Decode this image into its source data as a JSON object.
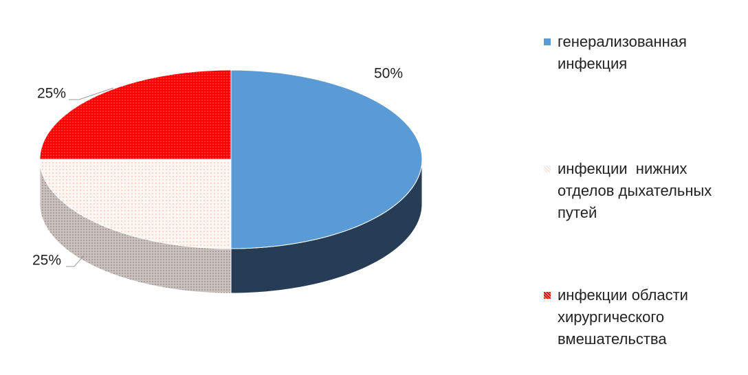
{
  "chart_data": {
    "type": "pie",
    "categories": [
      "генерализованная инфекция",
      "инфекции  нижних отделов дыхательных путей",
      "инфекции области хирургического вмешательства"
    ],
    "values": [
      50,
      25,
      25
    ],
    "value_labels": [
      "50%",
      "25%",
      "25%"
    ],
    "colors": [
      "#5b9bd5",
      "#fbece6",
      "#ff0000"
    ],
    "legend": "right"
  }
}
